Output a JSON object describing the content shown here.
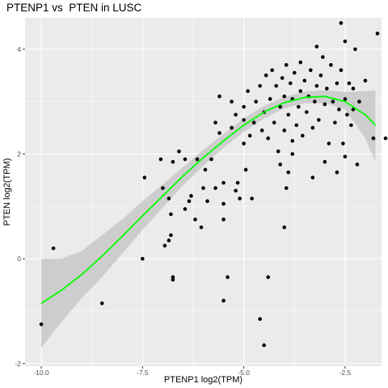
{
  "chart_data": {
    "type": "scatter",
    "title": "PTENP1 vs  PTEN in LUSC",
    "xlabel": "PTENP1 log2(TPM)",
    "ylabel": "PTEN log2(TPM)",
    "xlim": [
      -10.4,
      -1.6
    ],
    "ylim": [
      -2.05,
      4.6
    ],
    "x_ticks": [
      -10.0,
      -7.5,
      -5.0,
      -2.5
    ],
    "x_tick_labels": [
      "-10.0",
      "-7.5",
      "-5.0",
      "-2.5"
    ],
    "y_ticks": [
      -2,
      0,
      2,
      4
    ],
    "y_tick_labels": [
      "-2",
      "0",
      "2",
      "4"
    ],
    "grid": true,
    "legend": "none",
    "colors": {
      "panel": "#ebebeb",
      "grid": "#ffffff",
      "points": "#000000",
      "smooth": "#00ff00",
      "ribbon": "#c8c8c8"
    },
    "series": [
      {
        "kind": "points",
        "points": [
          [
            -10.0,
            -1.25
          ],
          [
            -9.7,
            0.2
          ],
          [
            -8.5,
            -0.85
          ],
          [
            -7.5,
            0.0
          ],
          [
            -7.45,
            1.55
          ],
          [
            -7.05,
            1.9
          ],
          [
            -7.0,
            1.35
          ],
          [
            -6.95,
            0.25
          ],
          [
            -6.85,
            1.15
          ],
          [
            -6.85,
            0.35
          ],
          [
            -6.8,
            0.45
          ],
          [
            -6.8,
            0.85
          ],
          [
            -6.75,
            1.85
          ],
          [
            -6.75,
            -0.35
          ],
          [
            -6.75,
            -0.4
          ],
          [
            -6.6,
            2.05
          ],
          [
            -6.45,
            0.95
          ],
          [
            -6.45,
            1.9
          ],
          [
            -6.35,
            1.1
          ],
          [
            -6.3,
            1.2
          ],
          [
            -6.2,
            0.75
          ],
          [
            -6.15,
            1.9
          ],
          [
            -6.05,
            0.6
          ],
          [
            -6.0,
            1.35
          ],
          [
            -5.95,
            1.7
          ],
          [
            -5.9,
            1.1
          ],
          [
            -5.8,
            1.9
          ],
          [
            -5.7,
            1.35
          ],
          [
            -5.5,
            1.05
          ],
          [
            -5.5,
            0.75
          ],
          [
            -5.5,
            1.45
          ],
          [
            -5.4,
            -0.35
          ],
          [
            -5.5,
            -0.8
          ],
          [
            -5.2,
            1.3
          ],
          [
            -5.15,
            1.45
          ],
          [
            -5.1,
            1.15
          ],
          [
            -5.0,
            2.2
          ],
          [
            -4.95,
            1.7
          ],
          [
            -4.8,
            1.15
          ],
          [
            -4.6,
            -1.15
          ],
          [
            -4.5,
            -1.65
          ],
          [
            -4.4,
            -0.35
          ],
          [
            -4.1,
            1.8
          ],
          [
            -4.0,
            0.6
          ],
          [
            -3.95,
            1.35
          ],
          [
            -3.9,
            1.65
          ],
          [
            -3.8,
            2.0
          ],
          [
            -5.6,
            2.4
          ],
          [
            -5.7,
            2.6
          ],
          [
            -5.6,
            3.1
          ],
          [
            -5.3,
            2.5
          ],
          [
            -5.2,
            2.75
          ],
          [
            -5.3,
            3.0
          ],
          [
            -5.0,
            2.65
          ],
          [
            -5.0,
            2.9
          ],
          [
            -4.9,
            3.2
          ],
          [
            -4.85,
            2.35
          ],
          [
            -4.75,
            2.6
          ],
          [
            -4.7,
            3.0
          ],
          [
            -4.6,
            3.3
          ],
          [
            -4.55,
            2.45
          ],
          [
            -4.5,
            2.8
          ],
          [
            -4.45,
            3.5
          ],
          [
            -4.4,
            2.3
          ],
          [
            -4.35,
            3.05
          ],
          [
            -4.3,
            3.6
          ],
          [
            -4.25,
            2.6
          ],
          [
            -4.2,
            3.3
          ],
          [
            -4.15,
            2.05
          ],
          [
            -4.1,
            2.9
          ],
          [
            -4.05,
            3.45
          ],
          [
            -4.0,
            2.45
          ],
          [
            -4.0,
            3.1
          ],
          [
            -3.95,
            3.7
          ],
          [
            -3.9,
            2.75
          ],
          [
            -3.85,
            3.35
          ],
          [
            -3.8,
            2.25
          ],
          [
            -3.8,
            3.05
          ],
          [
            -3.75,
            3.55
          ],
          [
            -3.7,
            2.55
          ],
          [
            -3.65,
            2.9
          ],
          [
            -3.6,
            3.2
          ],
          [
            -3.6,
            3.75
          ],
          [
            -3.55,
            2.35
          ],
          [
            -3.5,
            3.4
          ],
          [
            -3.45,
            2.8
          ],
          [
            -3.4,
            3.1
          ],
          [
            -3.35,
            3.6
          ],
          [
            -3.3,
            2.5
          ],
          [
            -3.25,
            3.0
          ],
          [
            -3.2,
            3.3
          ],
          [
            -3.15,
            2.65
          ],
          [
            -3.1,
            3.5
          ],
          [
            -3.05,
            3.85
          ],
          [
            -3.0,
            2.95
          ],
          [
            -2.95,
            3.25
          ],
          [
            -2.9,
            2.2
          ],
          [
            -2.85,
            3.7
          ],
          [
            -2.8,
            3.0
          ],
          [
            -2.75,
            2.6
          ],
          [
            -2.7,
            3.35
          ],
          [
            -2.65,
            2.85
          ],
          [
            -2.6,
            3.6
          ],
          [
            -2.55,
            2.2
          ],
          [
            -2.5,
            3.05
          ],
          [
            -2.45,
            2.75
          ],
          [
            -2.4,
            3.35
          ],
          [
            -2.35,
            2.55
          ],
          [
            -2.3,
            2.85
          ],
          [
            -2.3,
            3.25
          ],
          [
            -2.25,
            4.0
          ],
          [
            -2.2,
            1.8
          ],
          [
            -2.15,
            3.0
          ],
          [
            -3.2,
            4.05
          ],
          [
            -2.6,
            4.5
          ],
          [
            -2.5,
            4.15
          ],
          [
            -2.0,
            3.4
          ],
          [
            -1.7,
            4.3
          ],
          [
            -1.8,
            2.3
          ],
          [
            -1.5,
            2.3
          ],
          [
            -2.5,
            1.95
          ],
          [
            -3.0,
            1.85
          ],
          [
            -3.3,
            1.55
          ],
          [
            -2.7,
            1.65
          ]
        ]
      },
      {
        "kind": "smooth",
        "name": "",
        "x": [
          -10.0,
          -9.5,
          -9.0,
          -8.5,
          -8.0,
          -7.5,
          -7.0,
          -6.5,
          -6.0,
          -5.5,
          -5.0,
          -4.5,
          -4.0,
          -3.5,
          -3.0,
          -2.5,
          -2.0,
          -1.75
        ],
        "y": [
          -0.85,
          -0.6,
          -0.3,
          0.05,
          0.43,
          0.82,
          1.2,
          1.58,
          1.93,
          2.25,
          2.55,
          2.8,
          2.98,
          3.08,
          3.1,
          3.0,
          2.75,
          2.55
        ],
        "ymin": [
          -1.7,
          -1.2,
          -0.75,
          -0.35,
          0.1,
          0.55,
          0.98,
          1.4,
          1.77,
          2.12,
          2.42,
          2.68,
          2.87,
          2.97,
          2.97,
          2.85,
          2.3,
          1.85
        ],
        "ymax": [
          0.0,
          0.0,
          0.15,
          0.45,
          0.75,
          1.1,
          1.42,
          1.75,
          2.08,
          2.38,
          2.68,
          2.92,
          3.09,
          3.19,
          3.22,
          3.18,
          3.2,
          3.22
        ]
      }
    ]
  }
}
